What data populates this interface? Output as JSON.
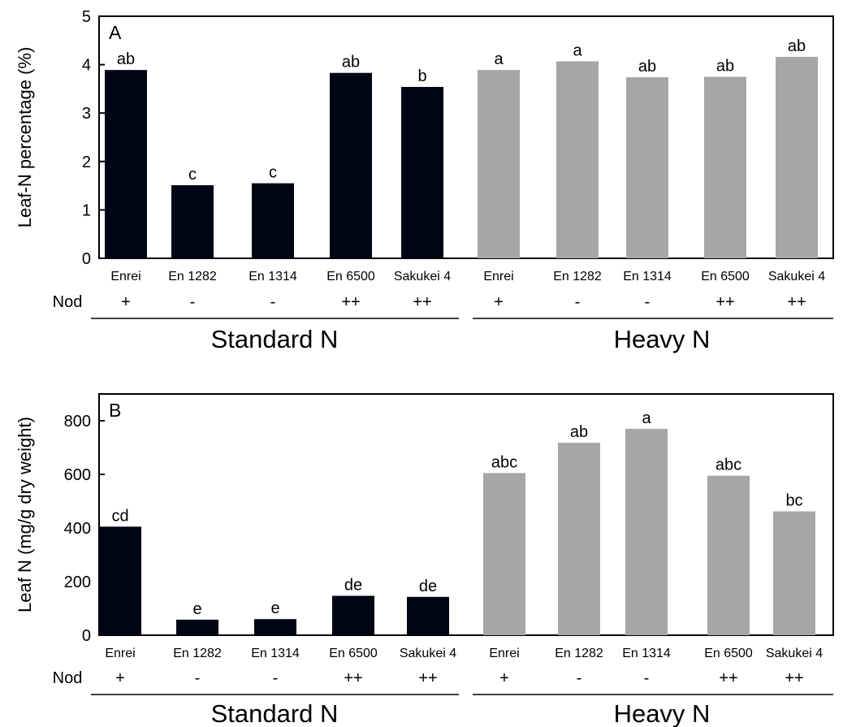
{
  "chart_data": [
    {
      "type": "bar",
      "panel_label": "A",
      "ylabel": "Leaf-N percentage (%)",
      "ylim": [
        0,
        5
      ],
      "yticks": [
        0,
        1,
        2,
        3,
        4,
        5
      ],
      "categories": [
        "Enrei",
        "En 1282",
        "En 1314",
        "En 6500",
        "Sakukei 4",
        "Enrei",
        "En 1282",
        "En 1314",
        "En 6500",
        "Sakukei 4"
      ],
      "nodulation_label": "Nod",
      "nodulation": [
        "+",
        "-",
        "-",
        "++",
        "++",
        "+",
        "-",
        "-",
        "++",
        "++"
      ],
      "groups": [
        "Standard N",
        "Heavy N"
      ],
      "values": [
        3.89,
        1.51,
        1.55,
        3.83,
        3.54,
        3.89,
        4.07,
        3.74,
        3.75,
        4.16
      ],
      "group_index": [
        0,
        0,
        0,
        0,
        0,
        1,
        1,
        1,
        1,
        1
      ],
      "significance": [
        "ab",
        "c",
        "c",
        "ab",
        "b",
        "a",
        "a",
        "ab",
        "ab",
        "ab"
      ],
      "colors": [
        "#000514",
        "#a6a6a6"
      ]
    },
    {
      "type": "bar",
      "panel_label": "B",
      "ylabel": "Leaf N (mg/g dry weight)",
      "ylim": [
        0,
        900
      ],
      "yticks": [
        0,
        200,
        400,
        600,
        800
      ],
      "categories": [
        "Enrei",
        "En 1282",
        "En 1314",
        "En 6500",
        "Sakukei 4",
        "Enrei",
        "En 1282",
        "En 1314",
        "En 6500",
        "Sakukei 4"
      ],
      "nodulation_label": "Nod",
      "nodulation": [
        "+",
        "-",
        "-",
        "++",
        "++",
        "+",
        "-",
        "-",
        "++",
        "++"
      ],
      "groups": [
        "Standard N",
        "Heavy N"
      ],
      "values": [
        405,
        58,
        60,
        147,
        143,
        605,
        718,
        770,
        595,
        462
      ],
      "group_index": [
        0,
        0,
        0,
        0,
        0,
        1,
        1,
        1,
        1,
        1
      ],
      "significance": [
        "cd",
        "e",
        "e",
        "de",
        "de",
        "abc",
        "ab",
        "a",
        "abc",
        "bc"
      ],
      "colors": [
        "#000514",
        "#a6a6a6"
      ]
    }
  ]
}
